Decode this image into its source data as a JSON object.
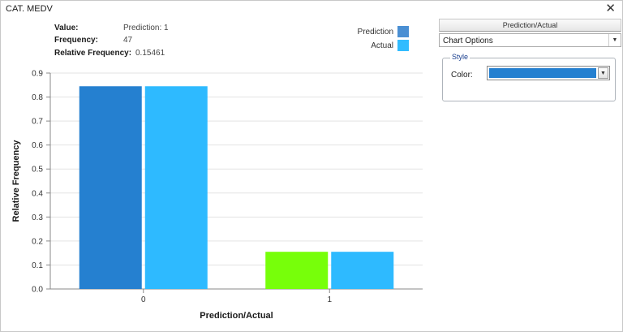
{
  "window": {
    "title": "CAT. MEDV",
    "close_glyph": "✕"
  },
  "info": {
    "value_label": "Value:",
    "value": "Prediction: 1",
    "frequency_label": "Frequency:",
    "frequency": "47",
    "relfreq_label": "Relative Frequency:",
    "relfreq": "0.15461"
  },
  "legend": {
    "items": [
      {
        "label": "Prediction",
        "color": "#4a8fd3"
      },
      {
        "label": "Actual",
        "color": "#32bcff"
      }
    ]
  },
  "panel": {
    "header": "Prediction/Actual",
    "options_label": "Chart Options",
    "style_legend": "Style",
    "color_label": "Color:",
    "selected_color": "#2580d0"
  },
  "chart_data": {
    "type": "bar",
    "categories": [
      "0",
      "1"
    ],
    "series": [
      {
        "name": "Prediction",
        "values": [
          0.845,
          0.155
        ],
        "colors": [
          "#2580d0",
          "#77ff0a"
        ]
      },
      {
        "name": "Actual",
        "values": [
          0.845,
          0.155
        ],
        "colors": [
          "#2ebaff",
          "#2ebaff"
        ]
      }
    ],
    "xlabel": "Prediction/Actual",
    "ylabel": "Relative Frequency",
    "ylim": [
      0,
      0.9
    ],
    "yticks": [
      "0.0",
      "0.1",
      "0.2",
      "0.3",
      "0.4",
      "0.5",
      "0.6",
      "0.7",
      "0.8",
      "0.9"
    ],
    "grid": true
  }
}
